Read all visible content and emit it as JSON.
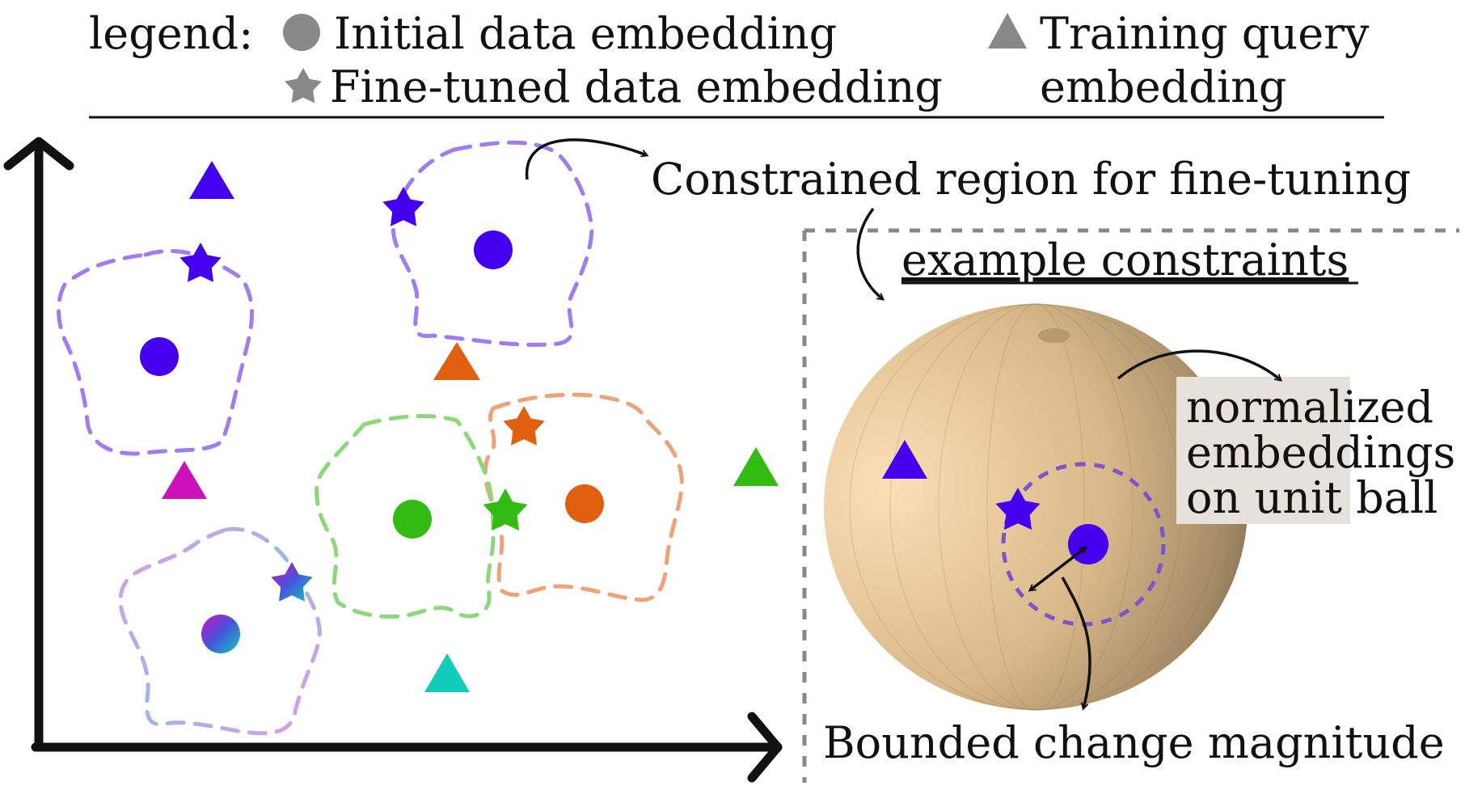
{
  "legend": {
    "title": "legend:",
    "initial": "Initial data embedding",
    "finetuned": "Fine-tuned data embedding",
    "query_line1": "Training query",
    "query_line2": "embedding"
  },
  "annotations": {
    "constrained_region": "Constrained region for fine-tuning",
    "example_constraints": "example constraints",
    "normalized_line1": "normalized",
    "normalized_line2": "embeddings",
    "normalized_line3": "on unit ball",
    "bounded_change": "Bounded change magnitude"
  },
  "colors": {
    "purple": "#4400ee",
    "purple_region": "#a07cf0",
    "orange": "#e06010",
    "orange_region": "#eea27a",
    "green": "#33bb11",
    "green_region": "#8cd878",
    "magenta": "#cc11bb",
    "teal": "#11ccbb",
    "legend_gray": "#888888",
    "sphere_light": "#f7d8ac",
    "sphere_dark": "#6e5e48",
    "ball_region": "#7a55cc"
  }
}
